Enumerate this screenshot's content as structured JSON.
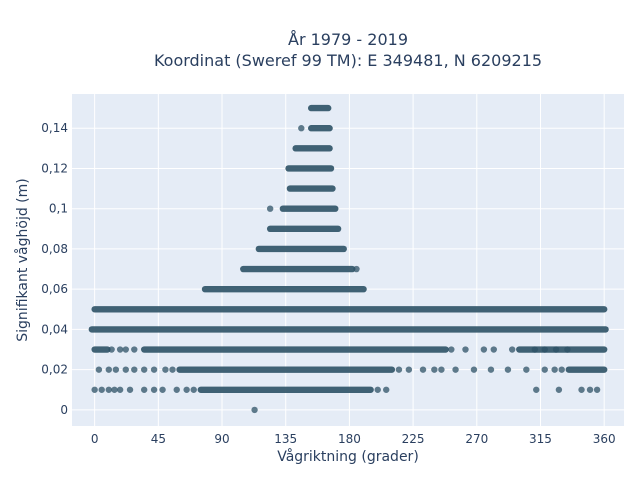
{
  "chart_data": {
    "type": "scatter",
    "title_line1": "År 1979 - 2019",
    "title_line2": "Koordinat (Sweref 99 TM): E 349481, N 6209215",
    "xlabel": "Vågriktning (grader)",
    "ylabel": "Signifikant våghöjd (m)",
    "xlim": [
      -16,
      374
    ],
    "ylim": [
      -0.008,
      0.157
    ],
    "x_ticks": [
      0,
      45,
      90,
      135,
      180,
      225,
      270,
      315,
      360
    ],
    "y_ticks": [
      0,
      0.02,
      0.04,
      0.06,
      0.08,
      0.1,
      0.12,
      0.14
    ],
    "y_tick_labels": [
      "0",
      "0,02",
      "0,04",
      "0,06",
      "0,08",
      "0,1",
      "0,12",
      "0,14"
    ],
    "grid": true,
    "marker_color": "#2e5266",
    "series": [
      {
        "y": 0.15,
        "x_ranges": [
          [
            153,
            165
          ]
        ]
      },
      {
        "y": 0.14,
        "x_ranges": [
          [
            153,
            166
          ]
        ],
        "x_points": [
          146
        ]
      },
      {
        "y": 0.13,
        "x_ranges": [
          [
            142,
            166
          ]
        ]
      },
      {
        "y": 0.12,
        "x_ranges": [
          [
            137,
            167
          ]
        ]
      },
      {
        "y": 0.11,
        "x_ranges": [
          [
            138,
            168
          ]
        ]
      },
      {
        "y": 0.1,
        "x_ranges": [
          [
            133,
            170
          ]
        ],
        "x_points": [
          124
        ]
      },
      {
        "y": 0.09,
        "x_ranges": [
          [
            124,
            172
          ]
        ]
      },
      {
        "y": 0.08,
        "x_ranges": [
          [
            116,
            176
          ]
        ]
      },
      {
        "y": 0.07,
        "x_ranges": [
          [
            105,
            182
          ]
        ],
        "x_points": [
          185
        ]
      },
      {
        "y": 0.06,
        "x_ranges": [
          [
            78,
            190
          ]
        ]
      },
      {
        "y": 0.05,
        "x_ranges": [
          [
            0,
            360
          ]
        ]
      },
      {
        "y": 0.04,
        "x_ranges": [
          [
            -2,
            361
          ]
        ]
      },
      {
        "y": 0.03,
        "x_ranges": [
          [
            0,
            9
          ],
          [
            35,
            248
          ],
          [
            300,
            360
          ]
        ],
        "x_points": [
          12,
          18,
          22,
          28,
          252,
          262,
          275,
          282,
          295,
          311,
          318,
          326,
          334
        ]
      },
      {
        "y": 0.02,
        "x_ranges": [
          [
            60,
            210
          ],
          [
            335,
            360
          ]
        ],
        "x_points": [
          3,
          10,
          15,
          22,
          28,
          35,
          42,
          50,
          55,
          215,
          222,
          232,
          240,
          245,
          255,
          268,
          280,
          292,
          305,
          318,
          325,
          330
        ]
      },
      {
        "y": 0.01,
        "x_ranges": [
          [
            75,
            195
          ]
        ],
        "x_points": [
          0,
          5,
          10,
          14,
          18,
          25,
          35,
          42,
          48,
          58,
          65,
          70,
          200,
          206,
          312,
          328,
          344,
          350,
          355
        ]
      },
      {
        "y": 0.0,
        "x_points": [
          113
        ]
      }
    ]
  }
}
